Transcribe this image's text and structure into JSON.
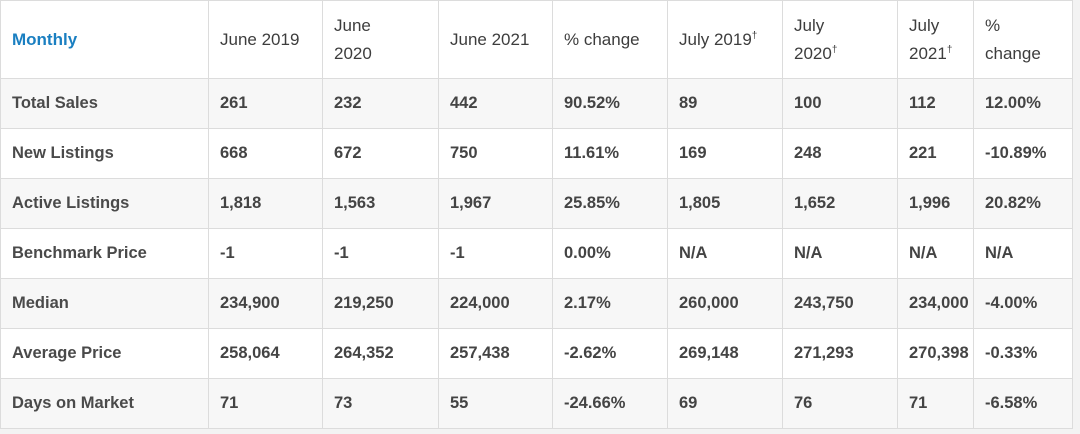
{
  "table": {
    "columns": [
      {
        "line1": "Monthly",
        "line2": "",
        "mark": ""
      },
      {
        "line1": "June 2019",
        "line2": "",
        "mark": ""
      },
      {
        "line1": "June",
        "line2": "2020",
        "mark": ""
      },
      {
        "line1": "June 2021",
        "line2": "",
        "mark": ""
      },
      {
        "line1": "% change",
        "line2": "",
        "mark": ""
      },
      {
        "line1": "July 2019",
        "line2": "",
        "mark": "†"
      },
      {
        "line1": "July",
        "line2": "2020",
        "mark": "†"
      },
      {
        "line1": "July",
        "line2": "2021",
        "mark": "†"
      },
      {
        "line1": "%",
        "line2": "change",
        "mark": ""
      }
    ],
    "rows": [
      {
        "label": "Total Sales",
        "cells": [
          "261",
          "232",
          "442",
          "90.52%",
          "89",
          "100",
          "112",
          "12.00%"
        ]
      },
      {
        "label": "New Listings",
        "cells": [
          "668",
          "672",
          "750",
          "11.61%",
          "169",
          "248",
          "221",
          "-10.89%"
        ]
      },
      {
        "label": "Active Listings",
        "cells": [
          "1,818",
          "1,563",
          "1,967",
          "25.85%",
          "1,805",
          "1,652",
          "1,996",
          "20.82%"
        ]
      },
      {
        "label": "Benchmark Price",
        "cells": [
          "-1",
          "-1",
          "-1",
          "0.00%",
          "N/A",
          "N/A",
          "N/A",
          "N/A"
        ]
      },
      {
        "label": "Median",
        "cells": [
          "234,900",
          "219,250",
          "224,000",
          "2.17%",
          "260,000",
          "243,750",
          "234,000",
          "-4.00%"
        ]
      },
      {
        "label": "Average Price",
        "cells": [
          "258,064",
          "264,352",
          "257,438",
          "-2.62%",
          "269,148",
          "271,293",
          "270,398",
          "-0.33%"
        ]
      },
      {
        "label": "Days on Market",
        "cells": [
          "71",
          "73",
          "55",
          "-24.66%",
          "69",
          "76",
          "71",
          "-6.58%"
        ]
      }
    ]
  },
  "colors": {
    "header_accent": "#1a7fc1",
    "row_stripe": "#f7f7f7",
    "grid": "#dcdcdc"
  }
}
